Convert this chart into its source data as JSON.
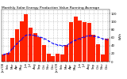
{
  "title": "Monthly Solar Energy Production Value Running Average",
  "ylabel": "kWh",
  "bar_color": "#ff2200",
  "avg_color": "#0000ff",
  "background_color": "#ffffff",
  "grid_color": "#999999",
  "categories": [
    "Jan'08",
    "Feb",
    "Mar",
    "Apr",
    "May",
    "Jun",
    "Jul",
    "Aug",
    "Sep",
    "Oct",
    "Nov",
    "Dec",
    "Jan'09",
    "Feb",
    "Mar",
    "Apr",
    "May",
    "Jun",
    "Jul",
    "Aug",
    "Sep",
    "Oct",
    "Nov",
    "Dec"
  ],
  "values": [
    18,
    22,
    60,
    80,
    100,
    118,
    85,
    70,
    62,
    42,
    20,
    14,
    20,
    18,
    42,
    98,
    112,
    102,
    98,
    96,
    66,
    44,
    18,
    58
  ],
  "running_avg": [
    18,
    20,
    33,
    45,
    56,
    66,
    67,
    65,
    62,
    58,
    52,
    45,
    42,
    40,
    40,
    48,
    54,
    58,
    62,
    65,
    64,
    62,
    57,
    55
  ],
  "ylim": [
    0,
    130
  ],
  "yticks": [
    0,
    20,
    40,
    60,
    80,
    100,
    120
  ],
  "title_fontsize": 3.2,
  "tick_fontsize": 2.8,
  "ylabel_fontsize": 3.0
}
